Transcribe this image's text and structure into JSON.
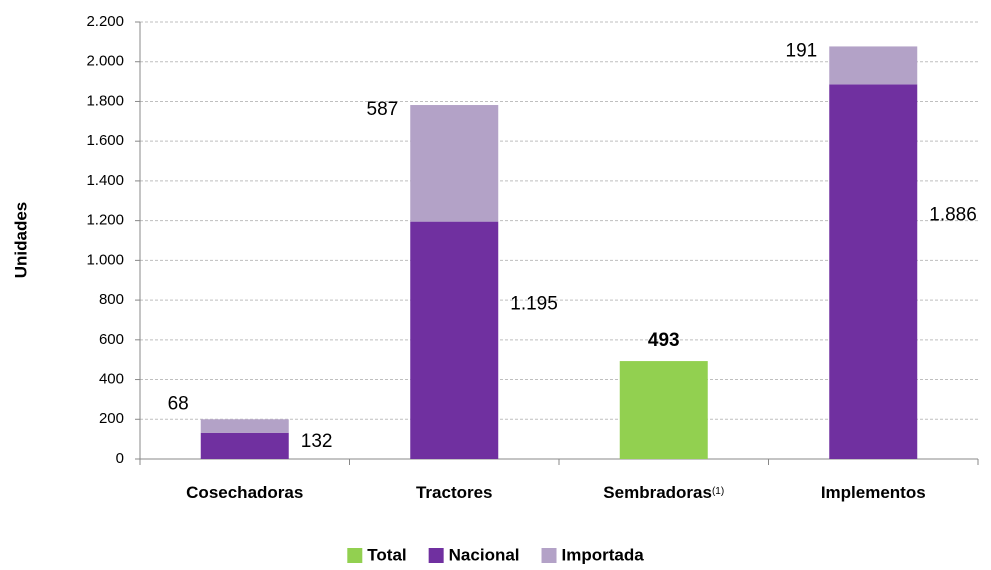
{
  "chart_data": {
    "type": "stacked_bar",
    "ylabel": "Unidades",
    "categories": [
      "Cosechadoras",
      "Tractores",
      "Sembradoras",
      "Implementos"
    ],
    "category_footnotes": [
      null,
      null,
      "(1)",
      null
    ],
    "series": [
      {
        "name": "Total",
        "color": "#92d050",
        "values": [
          null,
          null,
          493,
          null
        ]
      },
      {
        "name": "Nacional",
        "color": "#7030a0",
        "values": [
          132,
          1195,
          null,
          1886
        ],
        "value_labels": [
          "132",
          "1.195",
          null,
          "1.886"
        ]
      },
      {
        "name": "Importada",
        "color": "#b3a2c7",
        "values": [
          68,
          587,
          null,
          191
        ]
      }
    ],
    "ylim": [
      0,
      2200
    ],
    "yticks": [
      0,
      200,
      400,
      600,
      800,
      {
        "value": 1000,
        "label": "1.000"
      },
      {
        "value": 1200,
        "label": "1.200"
      },
      {
        "value": 1400,
        "label": "1.400"
      },
      {
        "value": 1600,
        "label": "1.600"
      },
      {
        "value": 1800,
        "label": "1.800"
      },
      {
        "value": 2000,
        "label": "2.000"
      },
      {
        "value": 2200,
        "label": "2.200"
      }
    ],
    "grid": true,
    "legend": "bottom"
  }
}
